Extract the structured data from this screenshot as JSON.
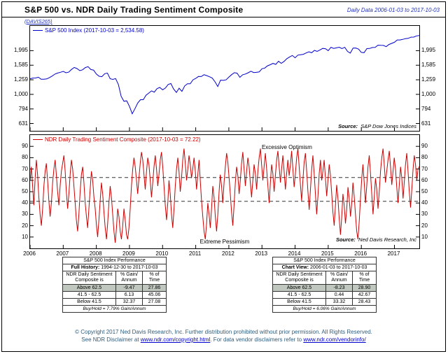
{
  "header": {
    "title": "S&P 500 vs. NDR Daily Trading Sentiment Composite",
    "date_range": "Daily Data 2006-01-03 to 2017-10-03",
    "chart_id": "(DAVIS265)"
  },
  "top_panel": {
    "legend": "S&P 500 Index (2017-10-03 = 2,534.58)",
    "source_label": "Source:",
    "source": "S&P Dow Jones Indices"
  },
  "bottom_panel": {
    "legend": "NDR Daily Trading Sentiment Composite (2017-10-03 = 72.22)",
    "annotation_top": "Excessive Optimism",
    "annotation_bottom": "Extreme Pessimism",
    "source_label": "Source:",
    "source": "Ned Davis Research, Inc"
  },
  "x_axis": {
    "years": [
      "2006",
      "2007",
      "2008",
      "2009",
      "2010",
      "2011",
      "2012",
      "2013",
      "2014",
      "2015",
      "2016",
      "2017"
    ]
  },
  "colors": {
    "sp500_line": "#0000cc",
    "sentiment_line": "#cc0000",
    "accent_blue": "#2233bb",
    "dashed_line": "#333333",
    "highlight_row": "#bfc7bf",
    "footer_text": "#2f5d7c",
    "link_blue": "#0000cc"
  },
  "tables": [
    {
      "title": "S&P 500 Index Performance",
      "subtitle_label": "Full History:",
      "subtitle_range": "1994-12-30 to 2017-10-03",
      "col_headers": [
        "NDR Daily Sentiment\nComposite is",
        "% Gain/\nAnnum",
        "% of\nTime"
      ],
      "rows": [
        {
          "label": "Above 62.5",
          "gain": "-9.47",
          "time": "27.86",
          "highlight": true
        },
        {
          "label": "41.5 - 62.5",
          "gain": "6.13",
          "time": "45.06",
          "highlight": false
        },
        {
          "label": "Below 41.5",
          "gain": "32.37",
          "time": "27.08",
          "highlight": false
        }
      ],
      "footnote": "Buy/Hold = 7.79% Gain/Annum"
    },
    {
      "title": "S&P 500 Index Performance",
      "subtitle_label": "Chart View:",
      "subtitle_range": "2006-01-03 to 2017-10-03",
      "col_headers": [
        "NDR Daily Sentiment\nComposite is",
        "% Gain/\nAnnum",
        "% of\nTime"
      ],
      "rows": [
        {
          "label": "Above 62.5",
          "gain": "-8.23",
          "time": "28.90",
          "highlight": true
        },
        {
          "label": "41.5 - 62.5",
          "gain": "0.44",
          "time": "42.67",
          "highlight": false
        },
        {
          "label": "Below 41.5",
          "gain": "33.32",
          "time": "28.43",
          "highlight": false
        }
      ],
      "footnote": "Buy/Hold = 6.06% Gain/Annum"
    }
  ],
  "footer": {
    "line1": "© Copyright 2017 Ned Davis Research, Inc. Further distribution prohibited without prior permission. All Rights Reserved.",
    "line2_prefix": "See NDR Disclaimer at ",
    "link1": "www.ndr.com/copyright.html",
    "line2_middle": ". For data vendor disclaimers refer to ",
    "link2": "www.ndr.com/vendorinfo/"
  },
  "chart_data": [
    {
      "type": "line",
      "name": "S&P 500 Index",
      "color": "#0000cc",
      "legend_position": "top-left",
      "x_range": [
        2006.0,
        2017.75
      ],
      "ylog": true,
      "ylim": [
        562,
        2951
      ],
      "y_ticks": [
        1995,
        1585,
        1259,
        1000,
        794,
        631
      ],
      "y_tick_labels": [
        "1,995",
        "1,585",
        "1,259",
        "1,000",
        "794",
        "631"
      ],
      "last_date": "2017-10-03",
      "last_value": 2534.58,
      "values": [
        1280,
        1294,
        1295,
        1311,
        1270,
        1270,
        1277,
        1304,
        1336,
        1378,
        1401,
        1418,
        1438,
        1407,
        1421,
        1482,
        1531,
        1503,
        1455,
        1474,
        1527,
        1549,
        1481,
        1468,
        1379,
        1331,
        1323,
        1386,
        1400,
        1280,
        1267,
        1283,
        1166,
        969,
        896,
        903,
        826,
        735,
        798,
        873,
        919,
        919,
        987,
        1021,
        1057,
        1036,
        1096,
        1115,
        1074,
        1104,
        1169,
        1187,
        1089,
        1031,
        1102,
        1049,
        1141,
        1183,
        1181,
        1258,
        1286,
        1327,
        1326,
        1364,
        1345,
        1321,
        1292,
        1219,
        1131,
        1253,
        1247,
        1258,
        1312,
        1366,
        1408,
        1398,
        1310,
        1362,
        1379,
        1407,
        1441,
        1412,
        1416,
        1426,
        1498,
        1515,
        1569,
        1598,
        1631,
        1606,
        1686,
        1633,
        1682,
        1757,
        1806,
        1848,
        1783,
        1859,
        1872,
        1884,
        1924,
        1960,
        1931,
        2003,
        1972,
        2018,
        2068,
        2059,
        1995,
        2105,
        2068,
        2086,
        2107,
        2063,
        2104,
        1972,
        1920,
        2079,
        2080,
        2044,
        1940,
        1932,
        2060,
        2065,
        2097,
        2099,
        2174,
        2171,
        2168,
        2126,
        2199,
        2239,
        2279,
        2364,
        2363,
        2384,
        2412,
        2423,
        2470,
        2472,
        2519,
        2534.58
      ]
    },
    {
      "type": "line",
      "name": "NDR Daily Trading Sentiment Composite",
      "color": "#cc0000",
      "legend_position": "top-left",
      "x_range": [
        2006.0,
        2017.75
      ],
      "ylog": false,
      "ylim": [
        0,
        100
      ],
      "y_ticks": [
        90,
        80,
        70,
        60,
        50,
        40,
        30,
        20,
        10
      ],
      "y_tick_labels": [
        "90",
        "80",
        "70",
        "60",
        "50",
        "40",
        "30",
        "20",
        "10"
      ],
      "thresholds": [
        62.5,
        41.5
      ],
      "zones": {
        "upper": "Excessive Optimism",
        "lower": "Extreme Pessimism"
      },
      "last_date": "2017-10-03",
      "last_value": 72.22,
      "values": [
        60,
        72,
        55,
        38,
        62,
        78,
        65,
        45,
        30,
        20,
        35,
        55,
        68,
        75,
        60,
        42,
        28,
        40,
        58,
        70,
        78,
        65,
        50,
        38,
        55,
        68,
        75,
        82,
        68,
        50,
        35,
        48,
        65,
        78,
        70,
        55,
        40,
        25,
        15,
        30,
        50,
        65,
        72,
        58,
        40,
        28,
        18,
        35,
        52,
        68,
        60,
        45,
        35,
        20,
        10,
        25,
        42,
        58,
        48,
        32,
        18,
        8,
        22,
        40,
        55,
        45,
        30,
        15,
        5,
        18,
        35,
        28,
        15,
        8,
        20,
        35,
        25,
        12,
        8,
        18,
        35,
        55,
        70,
        80,
        72,
        60,
        48,
        62,
        75,
        85,
        78,
        65,
        52,
        68,
        80,
        74,
        60,
        45,
        58,
        72,
        82,
        70,
        55,
        65,
        78,
        85,
        72,
        55,
        38,
        25,
        40,
        60,
        48,
        30,
        18,
        35,
        55,
        70,
        80,
        68,
        50,
        62,
        78,
        88,
        75,
        60,
        70,
        82,
        74,
        62,
        70,
        80,
        68,
        52,
        65,
        78,
        60,
        42,
        28,
        15,
        8,
        22,
        40,
        30,
        18,
        35,
        55,
        45,
        28,
        15,
        30,
        50,
        65,
        55,
        40,
        58,
        72,
        84,
        76,
        62,
        48,
        32,
        20,
        38,
        58,
        72,
        64,
        48,
        60,
        75,
        85,
        70,
        55,
        68,
        80,
        72,
        58,
        45,
        60,
        74,
        66,
        52,
        68,
        80,
        88,
        74,
        60,
        72,
        84,
        70,
        55,
        40,
        58,
        74,
        66,
        50,
        64,
        78,
        86,
        72,
        58,
        70,
        82,
        68,
        52,
        66,
        78,
        64,
        74,
        86,
        70,
        54,
        66,
        80,
        88,
        72,
        56,
        42,
        60,
        76,
        84,
        68,
        50,
        34,
        52,
        70,
        82,
        66,
        48,
        30,
        46,
        66,
        78,
        60,
        68,
        78,
        62,
        46,
        60,
        74,
        64,
        48,
        32,
        20,
        38,
        56,
        44,
        26,
        12,
        28,
        48,
        38,
        22,
        34,
        54,
        44,
        28,
        40,
        58,
        46,
        30,
        15,
        8,
        24,
        44,
        62,
        74,
        58,
        40,
        55,
        72,
        82,
        66,
        48,
        30,
        45,
        62,
        52,
        35,
        50,
        68,
        80,
        88,
        74,
        58,
        68,
        78,
        86,
        72,
        56,
        68,
        80,
        70,
        54,
        40,
        56,
        72,
        62,
        44,
        58,
        74,
        84,
        68,
        50,
        36,
        52,
        70,
        82,
        74,
        60,
        70,
        72.22
      ]
    }
  ]
}
